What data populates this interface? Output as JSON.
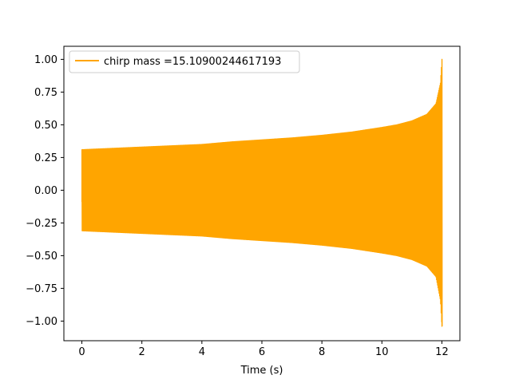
{
  "chart_data": {
    "type": "line",
    "title": "",
    "xlabel": "Time (s)",
    "ylabel": "",
    "xlim": [
      -0.6,
      12.6
    ],
    "ylim": [
      -1.15,
      1.1
    ],
    "x_ticks": [
      0,
      2,
      4,
      6,
      8,
      10,
      12
    ],
    "x_tick_labels": [
      "0",
      "2",
      "4",
      "6",
      "8",
      "10",
      "12"
    ],
    "y_ticks": [
      1.0,
      0.75,
      0.5,
      0.25,
      0.0,
      -0.25,
      -0.5,
      -0.75,
      -1.0
    ],
    "y_tick_labels": [
      "1.00",
      "0.75",
      "0.50",
      "0.25",
      "0.00",
      "−0.25",
      "−0.50",
      "−0.75",
      "−1.00"
    ],
    "grid": false,
    "legend_position": "top-left",
    "series": [
      {
        "name": "chirp mass =15.10900244617193",
        "color": "#ffa500",
        "x_start": 0,
        "x_end": 12.02,
        "amplitude_envelope": {
          "x": [
            0,
            1,
            2,
            3,
            4,
            5,
            6,
            7,
            8,
            9,
            10,
            10.5,
            11,
            11.5,
            11.8,
            11.95,
            12.0
          ],
          "upper": [
            0.31,
            0.32,
            0.33,
            0.34,
            0.35,
            0.37,
            0.385,
            0.4,
            0.42,
            0.445,
            0.48,
            0.5,
            0.53,
            0.58,
            0.66,
            0.82,
            1.0
          ],
          "lower": [
            -0.31,
            -0.32,
            -0.33,
            -0.34,
            -0.35,
            -0.37,
            -0.385,
            -0.4,
            -0.42,
            -0.445,
            -0.48,
            -0.5,
            -0.53,
            -0.58,
            -0.66,
            -0.84,
            -1.04
          ]
        },
        "start_value": -0.09
      }
    ]
  }
}
